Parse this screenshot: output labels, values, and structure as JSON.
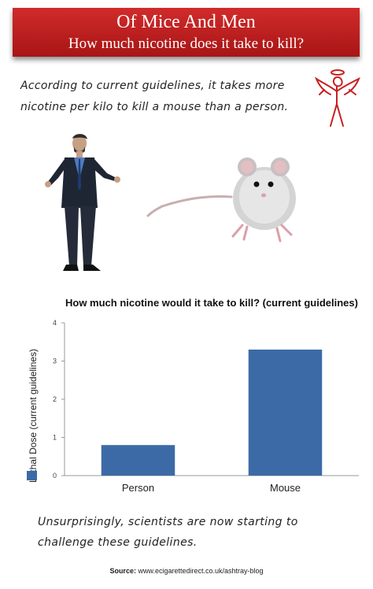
{
  "banner": {
    "title": "Of Mice And Men",
    "subtitle": "How much nicotine does it take to kill?"
  },
  "intro_text": "According to current guidelines, it takes more nicotine per kilo to kill a mouse than a person.",
  "outro_text": "Unsurprisingly, scientists are now starting to challenge these guidelines.",
  "source": {
    "label": "Source:",
    "url": "www.ecigarettedirect.co.uk/ashtray-blog"
  },
  "colors": {
    "banner_red": "#c01f1f",
    "bar_blue": "#3c6aa6"
  },
  "icons": {
    "logo": "winged-devil-logo",
    "man": "businessman-illustration",
    "mouse": "mouse-illustration"
  },
  "chart_data": {
    "type": "bar",
    "title": "How much nicotine would it take to kill? (current guidelines)",
    "xlabel": "",
    "ylabel": "Lethal Dose (current guidelines)",
    "categories": [
      "Person",
      "Mouse"
    ],
    "values": [
      0.8,
      3.3
    ],
    "ylim": [
      0,
      4
    ],
    "yticks": [
      0,
      1,
      2,
      3,
      4
    ],
    "grid": false,
    "legend": "left"
  }
}
